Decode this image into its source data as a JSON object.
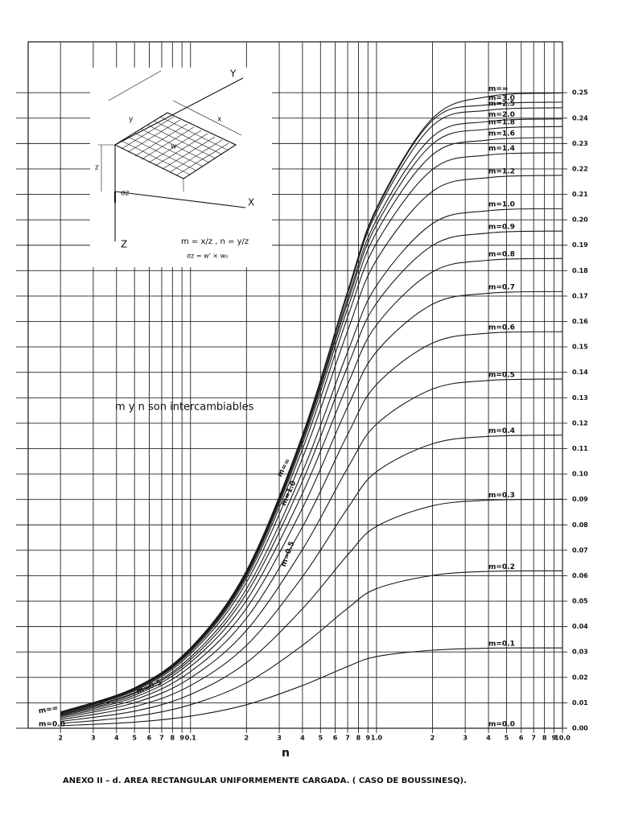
{
  "chart_data": {
    "type": "line",
    "x_label": "n",
    "annotation": "m y n son intercambiables",
    "caption": "ANEXO II – d. AREA RECTANGULAR UNIFORMEMENTE CARGADA. ( CASO DE BOUSSINESQ).",
    "xscale": "log",
    "grid": true,
    "color": "#1a1a1a",
    "x": [
      0.02,
      0.05,
      0.1,
      0.2,
      0.4,
      0.7,
      1,
      2,
      4,
      10
    ],
    "xlim": [
      0.0134,
      10
    ],
    "ylim": [
      0,
      0.27
    ],
    "xticks": [
      {
        "value": 0.02,
        "label": "2"
      },
      {
        "value": 0.03,
        "label": "3"
      },
      {
        "value": 0.04,
        "label": "4"
      },
      {
        "value": 0.05,
        "label": "5"
      },
      {
        "value": 0.06,
        "label": "6"
      },
      {
        "value": 0.07,
        "label": "7"
      },
      {
        "value": 0.08,
        "label": "8"
      },
      {
        "value": 0.09,
        "label": "9"
      },
      0.1,
      {
        "value": 0.2,
        "label": "2"
      },
      {
        "value": 0.3,
        "label": "3"
      },
      {
        "value": 0.4,
        "label": "4"
      },
      {
        "value": 0.5,
        "label": "5"
      },
      {
        "value": 0.6,
        "label": "6"
      },
      {
        "value": 0.7,
        "label": "7"
      },
      {
        "value": 0.8,
        "label": "8"
      },
      {
        "value": 0.9,
        "label": "9"
      },
      {
        "value": 1,
        "label": "1.0"
      },
      {
        "value": 2,
        "label": "2"
      },
      {
        "value": 3,
        "label": "3"
      },
      {
        "value": 4,
        "label": "4"
      },
      {
        "value": 5,
        "label": "5"
      },
      {
        "value": 6,
        "label": "6"
      },
      {
        "value": 7,
        "label": "7"
      },
      {
        "value": 8,
        "label": "8"
      },
      {
        "value": 9,
        "label": "9"
      },
      {
        "value": 10,
        "label": "10.0"
      }
    ],
    "yticks": [
      {
        "value": 0,
        "label": "0.00"
      },
      {
        "value": 0.01,
        "label": "0.01"
      },
      {
        "value": 0.02,
        "label": "0.02"
      },
      {
        "value": 0.03,
        "label": "0.03"
      },
      {
        "value": 0.04,
        "label": "0.04"
      },
      {
        "value": 0.05,
        "label": "0.05"
      },
      {
        "value": 0.06,
        "label": "0.06"
      },
      {
        "value": 0.07,
        "label": "0.07"
      },
      {
        "value": 0.08,
        "label": "0.08"
      },
      {
        "value": 0.09,
        "label": "0.09"
      },
      {
        "value": 0.1,
        "label": "0.10"
      },
      {
        "value": 0.11,
        "label": "0.11"
      },
      {
        "value": 0.12,
        "label": "0.12"
      },
      {
        "value": 0.13,
        "label": "0.13"
      },
      {
        "value": 0.14,
        "label": "0.14"
      },
      {
        "value": 0.15,
        "label": "0.15"
      },
      {
        "value": 0.16,
        "label": "0.16"
      },
      {
        "value": 0.17,
        "label": "0.17"
      },
      {
        "value": 0.18,
        "label": "0.18"
      },
      {
        "value": 0.19,
        "label": "0.19"
      },
      {
        "value": 0.2,
        "label": "0.20"
      },
      {
        "value": 0.21,
        "label": "0.21"
      },
      {
        "value": 0.22,
        "label": "0.22"
      },
      {
        "value": 0.23,
        "label": "0.23"
      },
      {
        "value": 0.24,
        "label": "0.24"
      },
      {
        "value": 0.25,
        "label": "0.25"
      }
    ],
    "series": [
      {
        "name": "m=0.0",
        "values": [
          0,
          0,
          0,
          0,
          0,
          0,
          0,
          0,
          0,
          0
        ]
      },
      {
        "name": "m=0.1",
        "values": [
          0.00097,
          0.00241,
          0.00477,
          0.00924,
          0.0168,
          0.0243,
          0.0282,
          0.0307,
          0.0315,
          0.0316
        ]
      },
      {
        "name": "m=0.2",
        "values": [
          0.00188,
          0.00467,
          0.00924,
          0.0179,
          0.0326,
          0.0472,
          0.0549,
          0.0601,
          0.0617,
          0.0619
        ]
      },
      {
        "name": "m=0.3",
        "values": [
          0.0027,
          0.0067,
          0.0133,
          0.0258,
          0.047,
          0.0682,
          0.0794,
          0.0875,
          0.0897,
          0.0901
        ]
      },
      {
        "name": "m=0.4",
        "values": [
          0.0034,
          0.0085,
          0.0168,
          0.0326,
          0.0596,
          0.0866,
          0.1009,
          0.1119,
          0.1148,
          0.1153
        ]
      },
      {
        "name": "m=0.5",
        "values": [
          0.004,
          0.01,
          0.0198,
          0.0385,
          0.0703,
          0.1024,
          0.1196,
          0.1334,
          0.1368,
          0.1374
        ]
      },
      {
        "name": "m=0.6",
        "values": [
          0.0045,
          0.0112,
          0.0223,
          0.0433,
          0.0792,
          0.1156,
          0.1352,
          0.1515,
          0.1554,
          0.156
        ]
      },
      {
        "name": "m=0.7",
        "values": [
          0.0049,
          0.0122,
          0.0243,
          0.0472,
          0.0866,
          0.1265,
          0.1481,
          0.1668,
          0.1711,
          0.1718
        ]
      },
      {
        "name": "m=0.8",
        "values": [
          0.0052,
          0.013,
          0.0259,
          0.0503,
          0.0924,
          0.1353,
          0.1586,
          0.1795,
          0.1841,
          0.1848
        ]
      },
      {
        "name": "m=0.9",
        "values": [
          0.0055,
          0.0137,
          0.027,
          0.0529,
          0.0972,
          0.1424,
          0.1672,
          0.1899,
          0.1948,
          0.1956
        ]
      },
      {
        "name": "m=1.0",
        "values": [
          0.0056,
          0.01405,
          0.02795,
          0.0548,
          0.1009,
          0.1481,
          0.1741,
          0.1985,
          0.2036,
          0.2044
        ]
      },
      {
        "name": "m=1.2",
        "values": [
          0.0059,
          0.0147,
          0.0293,
          0.0574,
          0.1063,
          0.1564,
          0.1842,
          0.2112,
          0.2166,
          0.2175
        ]
      },
      {
        "name": "m=1.4",
        "values": [
          0.0061,
          0.0151,
          0.0301,
          0.059,
          0.1098,
          0.1618,
          0.1908,
          0.2198,
          0.2255,
          0.2264
        ]
      },
      {
        "name": "m=1.6",
        "values": [
          0.0062,
          0.0154,
          0.0306,
          0.06,
          0.1119,
          0.1652,
          0.1951,
          0.2256,
          0.2314,
          0.2324
        ]
      },
      {
        "name": "m=1.8",
        "values": [
          0.0062,
          0.0155,
          0.0309,
          0.0606,
          0.1132,
          0.1676,
          0.198,
          0.2298,
          0.2357,
          0.2367
        ]
      },
      {
        "name": "m=2.0",
        "values": [
          0.0063,
          0.0156,
          0.0311,
          0.061,
          0.114,
          0.1691,
          0.2,
          0.2327,
          0.2387,
          0.2397
        ]
      },
      {
        "name": "m=2.5",
        "values": [
          0.0063,
          0.0158,
          0.0314,
          0.0615,
          0.1148,
          0.171,
          0.2028,
          0.237,
          0.2431,
          0.2441
        ]
      },
      {
        "name": "m=3.0",
        "values": [
          0.0063,
          0.0158,
          0.0315,
          0.0618,
          0.1151,
          0.1717,
          0.204,
          0.2391,
          0.2453,
          0.2463
        ]
      },
      {
        "name": "m=∞",
        "values": [
          0.0064,
          0.0159,
          0.0316,
          0.062,
          0.1154,
          0.172,
          0.2046,
          0.2399,
          0.2485,
          0.2499
        ]
      }
    ]
  },
  "inset": {
    "axis_x": "X",
    "axis_y": "Y",
    "axis_z": "Z",
    "dim_x": "x",
    "dim_y": "y",
    "dim_z": "z",
    "load": "w",
    "stress": "σz",
    "formula_1": "m = x/z ,  n = y/z",
    "formula_2": "σz = w' × w₀"
  }
}
